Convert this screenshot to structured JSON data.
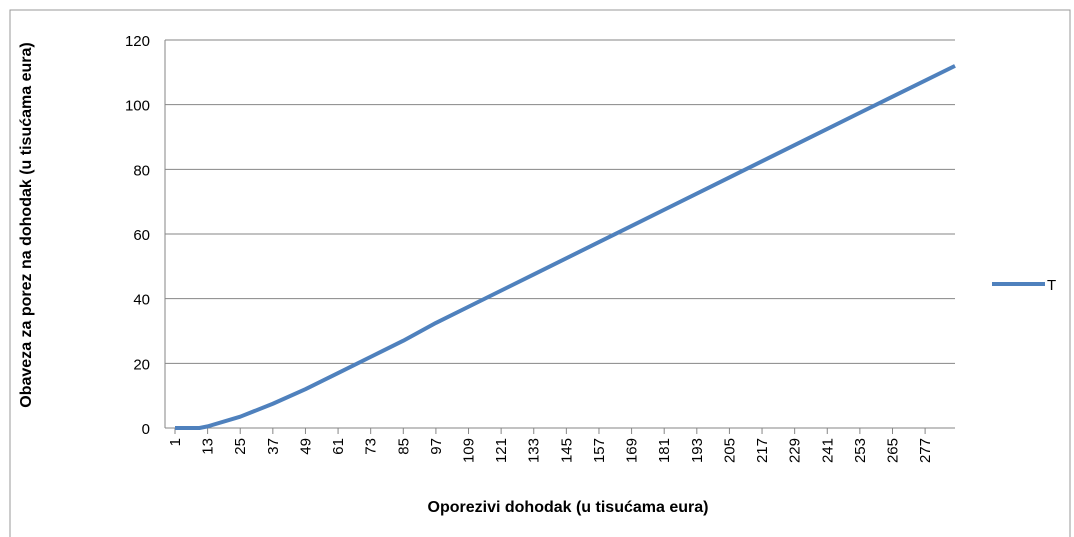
{
  "chart_data": {
    "type": "line",
    "x_label": "Oporezivi dohodak (u tisućama eura)",
    "y_label": "Obaveza za porez na dohodak (u tisućama eura)",
    "x": [
      1,
      10,
      13,
      25,
      37,
      49,
      61,
      73,
      85,
      97,
      109,
      133,
      157,
      181,
      205,
      229,
      253,
      288
    ],
    "series": [
      {
        "name": "T",
        "color": "#4f81bd",
        "values": [
          0,
          0,
          0.5,
          3.5,
          7.5,
          12,
          17,
          22,
          27,
          32.5,
          37.5,
          47.5,
          57.5,
          67.5,
          77.5,
          87.5,
          97.5,
          112
        ]
      }
    ],
    "xlim": [
      1,
      288
    ],
    "xticks": [
      1,
      13,
      25,
      37,
      49,
      61,
      73,
      85,
      97,
      109,
      121,
      133,
      145,
      157,
      169,
      181,
      193,
      205,
      217,
      229,
      241,
      253,
      265,
      277
    ],
    "ylim": [
      0,
      120
    ],
    "yticks": [
      0,
      20,
      40,
      60,
      80,
      100,
      120
    ],
    "grid": true,
    "legend": "right"
  }
}
